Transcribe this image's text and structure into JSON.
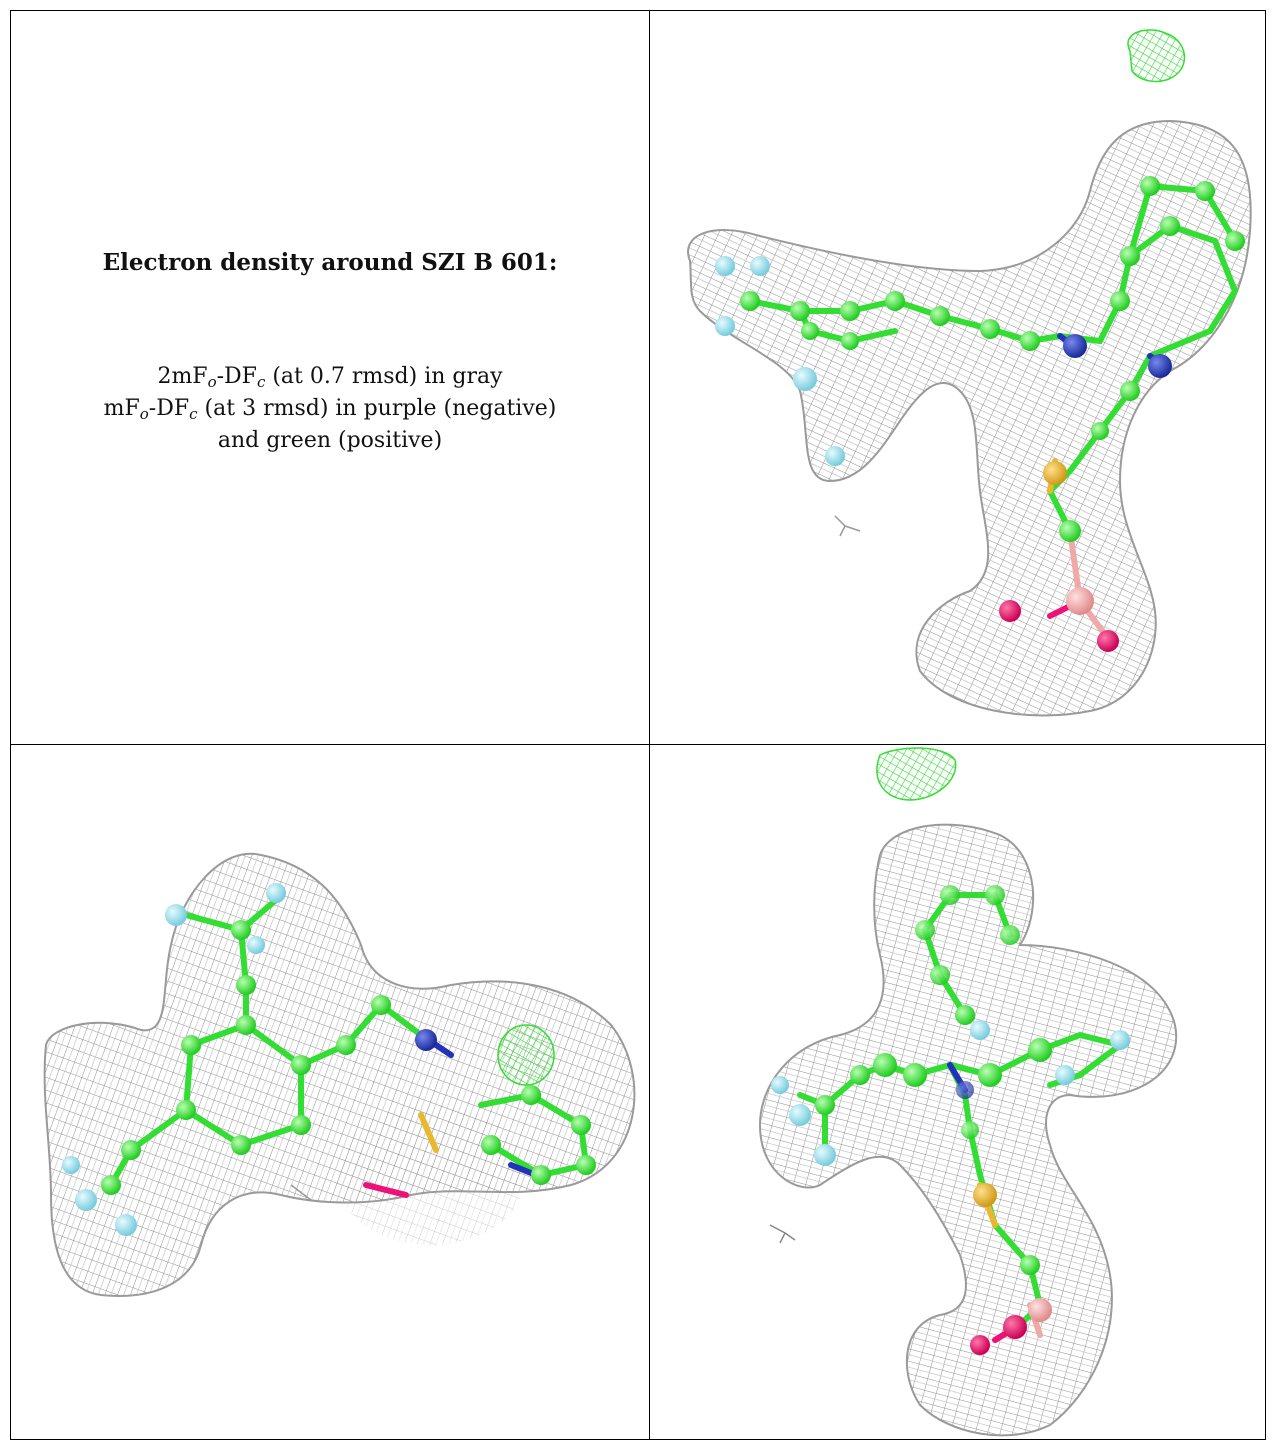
{
  "caption": {
    "title": "Electron density around SZI B 601:",
    "map1": {
      "prefix": "2mF",
      "sub1": "o",
      "mid": "-DF",
      "sub2": "c",
      "rest": " (at 0.7 rmsd) in gray"
    },
    "map2": {
      "prefix": "mF",
      "sub1": "o",
      "mid": "-DF",
      "sub2": "c",
      "rest": " (at 3 rmsd) in purple (negative)"
    },
    "map3": "and green (positive)"
  },
  "colors": {
    "mesh_gray": "#9a9a9a",
    "mesh_positive": "#33dd33",
    "carbon": "#33ee33",
    "nitrogen": "#2233bb",
    "fluorine": "#88ddee",
    "sulfur": "#e8b830",
    "oxygen": "#ee1177",
    "boron": "#f0a8a8"
  },
  "panels": [
    {
      "view": "view-1",
      "icons": [
        "mesh-gray",
        "mesh-positive",
        "ball-and-stick-ligand"
      ]
    },
    {
      "view": "view-2",
      "icons": [
        "mesh-gray",
        "mesh-positive",
        "ball-and-stick-ligand"
      ]
    },
    {
      "view": "view-3",
      "icons": [
        "mesh-gray",
        "mesh-positive",
        "ball-and-stick-ligand"
      ]
    }
  ]
}
